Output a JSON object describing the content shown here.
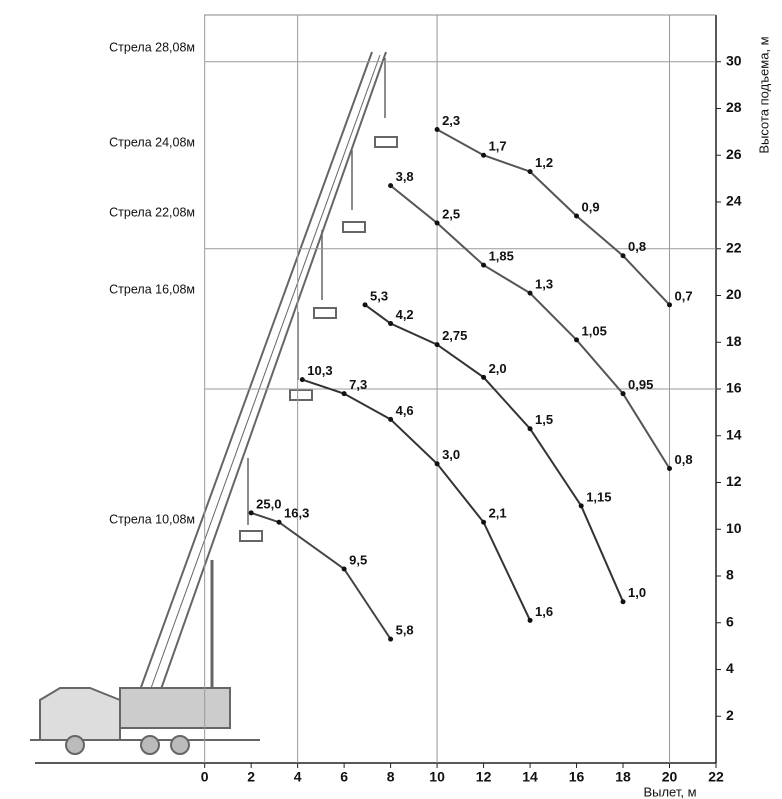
{
  "chart_data": {
    "type": "line",
    "x_label": "Вылет, м",
    "y_label": "Высота подъема, м",
    "xlim": [
      -7.3,
      22
    ],
    "ylim": [
      0,
      32
    ],
    "xticks": [
      0,
      2,
      4,
      6,
      8,
      10,
      12,
      14,
      16,
      18,
      20,
      22
    ],
    "yticks": [
      2,
      4,
      6,
      8,
      10,
      12,
      14,
      16,
      18,
      20,
      22,
      24,
      26,
      28,
      30
    ],
    "grid_x": [
      0,
      4,
      10,
      20
    ],
    "grid_y": [
      16,
      22,
      30
    ],
    "series": [
      {
        "name": "Стрела 28,08м",
        "color": "#555555",
        "x": [
          10,
          12,
          14,
          16,
          18,
          20
        ],
        "values": [
          27.1,
          26,
          25.3,
          23.4,
          21.7,
          19.6
        ],
        "loads": [
          "2,3",
          "1,7",
          "1,2",
          "0,9",
          "0,8",
          "0,7"
        ]
      },
      {
        "name": "Стрела 24,08м",
        "color": "#555555",
        "x": [
          8,
          10,
          12,
          14,
          16,
          18,
          20
        ],
        "values": [
          24.7,
          23.1,
          21.3,
          20.1,
          18.1,
          15.8,
          12.6
        ],
        "loads": [
          "3,8",
          "2,5",
          "1,85",
          "1,3",
          "1,05",
          "0,95",
          "0,8"
        ]
      },
      {
        "name": "Стрела 22,08м",
        "color": "#333333",
        "x": [
          6.9,
          8,
          10,
          12,
          14,
          16.2,
          18
        ],
        "values": [
          19.6,
          18.8,
          17.9,
          16.5,
          14.3,
          11,
          6.9
        ],
        "loads": [
          "5,3",
          "4,2",
          "2,75",
          "2,0",
          "1,5",
          "1,15",
          "1,0"
        ]
      },
      {
        "name": "Стрела 16,08м",
        "color": "#333333",
        "x": [
          4.2,
          6,
          8,
          10,
          12,
          14
        ],
        "values": [
          16.4,
          15.8,
          14.7,
          12.8,
          10.3,
          6.1
        ],
        "loads": [
          "10,3",
          "7,3",
          "4,6",
          "3,0",
          "2,1",
          "1,6"
        ]
      },
      {
        "name": "Стрела 10,08м",
        "color": "#444444",
        "x": [
          2,
          3.2,
          6,
          8
        ],
        "values": [
          10.7,
          10.3,
          8.3,
          5.3
        ],
        "loads": [
          "25,0",
          "16,3",
          "9,5",
          "5,8"
        ]
      }
    ]
  }
}
